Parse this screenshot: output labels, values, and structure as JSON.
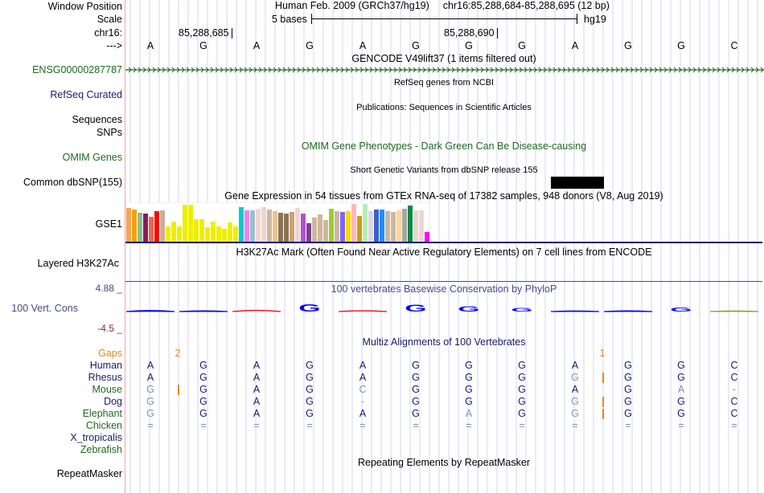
{
  "header": {
    "window_position_label": "Window Position",
    "scale_label": "Scale",
    "chrom_label": "chr16:",
    "strand_label": "--->",
    "assembly": "Human Feb. 2009 (GRCh37/hg19)",
    "position": "chr16:85,288,684-85,288,695 (12 bp)",
    "scale_text": "5 bases",
    "scale_db": "hg19",
    "ticks": [
      "85,288,685",
      "85,288,690"
    ]
  },
  "sequence": [
    "A",
    "G",
    "A",
    "G",
    "A",
    "G",
    "G",
    "G",
    "A",
    "G",
    "G",
    "C"
  ],
  "tracks": {
    "gencode": {
      "title": "GENCODE V49lift37 (1 items filtered out)",
      "label": "ENSG00000287787"
    },
    "refseq": {
      "label": "RefSeq Curated",
      "title": "RefSeq genes from NCBI"
    },
    "publications": {
      "label": "Sequences",
      "title": "Publications: Sequences in Scientific Articles"
    },
    "snps_pubs": {
      "label": "SNPs"
    },
    "omim": {
      "label": "OMIM Genes",
      "title": "OMIM Gene Phenotypes - Dark Green Can Be Disease-causing"
    },
    "dbsnp": {
      "label": "Common dbSNP(155)",
      "title": "Short Genetic Variants from dbSNP release 155"
    },
    "gtex": {
      "label": "GSE1",
      "title": "Gene Expression in 54 tissues from GTEx RNA-seq of 17382 samples, 948 donors (V8, Aug 2019)",
      "bars": [
        {
          "color": "#f7a35a",
          "value": 0.9
        },
        {
          "color": "#f0a30a",
          "value": 0.86
        },
        {
          "color": "#8fbc8f",
          "value": 0.76
        },
        {
          "color": "#8b1a5a",
          "value": 0.74
        },
        {
          "color": "#e8694a",
          "value": 0.66
        },
        {
          "color": "#ff0000",
          "value": 0.8
        },
        {
          "color": "#c8b09a",
          "value": 0.82
        },
        {
          "color": "#eeee00",
          "value": 0.4
        },
        {
          "color": "#eeee00",
          "value": 0.54
        },
        {
          "color": "#eeee00",
          "value": 0.4
        },
        {
          "color": "#eeee00",
          "value": 0.98
        },
        {
          "color": "#eeee00",
          "value": 0.98
        },
        {
          "color": "#eeee00",
          "value": 0.6
        },
        {
          "color": "#eeee00",
          "value": 0.6
        },
        {
          "color": "#eeee00",
          "value": 0.38
        },
        {
          "color": "#eeee00",
          "value": 0.54
        },
        {
          "color": "#eeee00",
          "value": 0.4
        },
        {
          "color": "#eeee00",
          "value": 0.34
        },
        {
          "color": "#eeee00",
          "value": 0.5
        },
        {
          "color": "#eeee00",
          "value": 0.4
        },
        {
          "color": "#00cccc",
          "value": 0.92
        },
        {
          "color": "#ee82ee",
          "value": 0.82
        },
        {
          "color": "#9abfcb",
          "value": 0.82
        },
        {
          "color": "#eed5d2",
          "value": 0.88
        },
        {
          "color": "#eed5d2",
          "value": 0.92
        },
        {
          "color": "#cdb79e",
          "value": 0.86
        },
        {
          "color": "#f0c08a",
          "value": 0.8
        },
        {
          "color": "#8b7355",
          "value": 0.76
        },
        {
          "color": "#8b7355",
          "value": 0.74
        },
        {
          "color": "#cda273",
          "value": 0.78
        },
        {
          "color": "#eed5d2",
          "value": 0.9
        },
        {
          "color": "#b452cd",
          "value": 0.74
        },
        {
          "color": "#7d3c98",
          "value": 0.48
        },
        {
          "color": "#cdb79e",
          "value": 0.64
        },
        {
          "color": "#cdb79e",
          "value": 0.72
        },
        {
          "color": "#cdb79e",
          "value": 0.58
        },
        {
          "color": "#9acd32",
          "value": 0.88
        },
        {
          "color": "#cdb79e",
          "value": 0.8
        },
        {
          "color": "#7b68ee",
          "value": 0.78
        },
        {
          "color": "#ffd700",
          "value": 0.8
        },
        {
          "color": "#ffb6c1",
          "value": 1.0
        },
        {
          "color": "#cd9b1d",
          "value": 0.68
        },
        {
          "color": "#b4eeb4",
          "value": 1.0
        },
        {
          "color": "#d9d9d9",
          "value": 0.8
        },
        {
          "color": "#3a5fcd",
          "value": 0.86
        },
        {
          "color": "#1e90ff",
          "value": 0.86
        },
        {
          "color": "#cdb79e",
          "value": 0.8
        },
        {
          "color": "#cdb79e",
          "value": 0.78
        },
        {
          "color": "#ffd39b",
          "value": 0.82
        },
        {
          "color": "#a6a6a6",
          "value": 0.88
        },
        {
          "color": "#008b45",
          "value": 0.96
        },
        {
          "color": "#eed5d2",
          "value": 0.82
        },
        {
          "color": "#eed5d2",
          "value": 0.84
        },
        {
          "color": "#ff00ff",
          "value": 0.26
        }
      ]
    },
    "h3k27ac": {
      "label": "Layered H3K27Ac",
      "title": "H3K27Ac Mark (Often Found Near Active Regulatory Elements) on 7 cell lines from ENCODE"
    },
    "conservation": {
      "label": "100 Vert. Cons",
      "title": "100 vertebrates Basewise Conservation by PhyloP",
      "ymax": "4.88 _",
      "ymin": "-4.5 _",
      "scores": [
        0.3,
        0.2,
        -0.3,
        1.2,
        -0.2,
        1.1,
        0.9,
        0.6,
        0.1,
        0.2,
        0.7,
        0.05
      ]
    },
    "multiz": {
      "title": "Multiz Alignments of 100 Vertebrates",
      "gaps_label": "Gaps",
      "gap_counts": [
        {
          "after_base": 1,
          "count": "2"
        },
        {
          "after_base": 9,
          "count": "1"
        }
      ],
      "species": [
        {
          "name": "Human",
          "color": "navy",
          "bases": [
            "A",
            "G",
            "A",
            "G",
            "A",
            "G",
            "G",
            "G",
            "A",
            "G",
            "G",
            "C"
          ]
        },
        {
          "name": "Rhesus",
          "color": "navy",
          "bases": [
            "A",
            "G",
            "A",
            "G",
            "A",
            "G",
            "G",
            "G",
            "G",
            "G",
            "G",
            "C"
          ]
        },
        {
          "name": "Mouse",
          "color": "green",
          "bases": [
            "G",
            "G",
            "A",
            "G",
            "C",
            "G",
            "G",
            "G",
            "A",
            "G",
            "A",
            "-"
          ]
        },
        {
          "name": "Dog",
          "color": "navy",
          "bases": [
            "G",
            "G",
            "A",
            "G",
            "-",
            "G",
            "G",
            "G",
            "G",
            "G",
            "G",
            "C"
          ]
        },
        {
          "name": "Elephant",
          "color": "green",
          "bases": [
            "G",
            "G",
            "A",
            "G",
            "A",
            "G",
            "A",
            "G",
            "G",
            "G",
            "G",
            "C"
          ]
        },
        {
          "name": "Chicken",
          "color": "green",
          "bases": [
            "=",
            "=",
            "=",
            "=",
            "=",
            "=",
            "=",
            "=",
            "=",
            "=",
            "=",
            "="
          ]
        },
        {
          "name": "X_tropicalis",
          "color": "navy",
          "bases": []
        },
        {
          "name": "Zebrafish",
          "color": "green",
          "bases": []
        }
      ]
    },
    "repeatmasker": {
      "label": "RepeatMasker",
      "title": "Repeating Elements by RepeatMasker"
    }
  },
  "colors": {
    "gridline": "#d6d6f5",
    "left_border": "#f2a6a6",
    "gencode_green": "#1d6b1d",
    "navy": "#1a1a6e",
    "gap_orange": "#e08a1a",
    "cons_positive": "#0000ff",
    "cons_negative": "#ff0000"
  }
}
